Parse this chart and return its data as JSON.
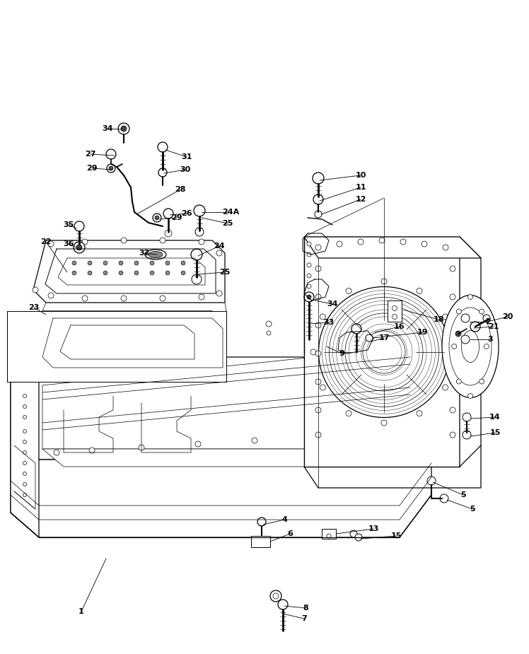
{
  "bg_color": "#ffffff",
  "line_color": "#000000",
  "figsize": [
    7.48,
    9.25
  ],
  "dpi": 100,
  "title": "",
  "lw_main": 0.9,
  "lw_thin": 0.5,
  "lw_med": 0.7
}
